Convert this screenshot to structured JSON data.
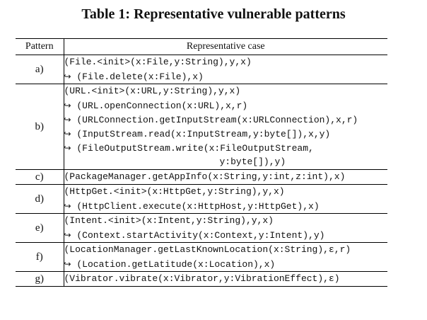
{
  "caption": "Table 1: Representative vulnerable patterns",
  "headers": {
    "pattern": "Pattern",
    "case": "Representative case"
  },
  "arrow_glyph": "↪",
  "rows": [
    {
      "pattern": "a)",
      "lines": [
        {
          "arrow": false,
          "text": "(File.<init>(x:File,y:String),y,x)"
        },
        {
          "arrow": true,
          "text": " (File.delete(x:File),x)"
        }
      ]
    },
    {
      "pattern": "b)",
      "lines": [
        {
          "arrow": false,
          "text": "(URL.<init>(x:URL,y:String),y,x)"
        },
        {
          "arrow": true,
          "text": " (URL.openConnection(x:URL),x,r)"
        },
        {
          "arrow": true,
          "text": " (URLConnection.getInputStream(x:URLConnection),x,r)"
        },
        {
          "arrow": true,
          "text": " (InputStream.read(x:InputStream,y:byte[]),x,y)"
        },
        {
          "arrow": true,
          "text": " (FileOutputStream.write(x:FileOutputStream,"
        },
        {
          "arrow": false,
          "cont": true,
          "text": "y:byte[]),y)"
        }
      ]
    },
    {
      "pattern": "c)",
      "lines": [
        {
          "arrow": false,
          "text": "(PackageManager.getAppInfo(x:String,y:int,z:int),x)"
        }
      ]
    },
    {
      "pattern": "d)",
      "lines": [
        {
          "arrow": false,
          "text": "(HttpGet.<init>(x:HttpGet,y:String),y,x)"
        },
        {
          "arrow": true,
          "text": " (HttpClient.execute(x:HttpHost,y:HttpGet),x)"
        }
      ]
    },
    {
      "pattern": "e)",
      "lines": [
        {
          "arrow": false,
          "text": "(Intent.<init>(x:Intent,y:String),y,x)"
        },
        {
          "arrow": true,
          "text": " (Context.startActivity(x:Context,y:Intent),y)"
        }
      ]
    },
    {
      "pattern": "f)",
      "lines": [
        {
          "arrow": false,
          "text": "(LocationManager.getLastKnownLocation(x:String),ε,r)"
        },
        {
          "arrow": true,
          "text": " (Location.getLatitude(x:Location),x)"
        }
      ]
    },
    {
      "pattern": "g)",
      "lines": [
        {
          "arrow": false,
          "text": "(Vibrator.vibrate(x:Vibrator,y:VibrationEffect),ε)"
        }
      ]
    }
  ]
}
